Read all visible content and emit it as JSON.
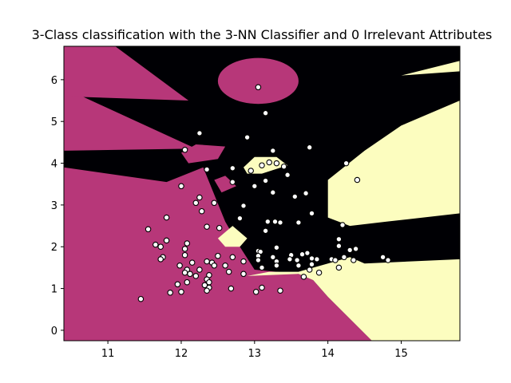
{
  "chart_data": {
    "type": "scatter",
    "title": "3-Class classification with the 3-NN Classifier and 0 Irrelevant Attributes",
    "xlabel": "",
    "ylabel": "",
    "xlim": [
      10.4,
      15.8
    ],
    "ylim": [
      -0.25,
      6.8
    ],
    "x_ticks": [
      11,
      12,
      13,
      14,
      15
    ],
    "y_ticks": [
      0,
      1,
      2,
      3,
      4,
      5,
      6
    ],
    "grid": false,
    "legend": "none",
    "colors": {
      "class_0": "#b73779",
      "class_1": "#000004",
      "class_2": "#fcfdbf",
      "point_edge": "#000000"
    },
    "decision_regions": [
      {
        "class": "class_0",
        "polygon": [
          [
            10.4,
            5.8
          ],
          [
            12.2,
            4.35
          ],
          [
            10.4,
            4.3
          ]
        ]
      },
      {
        "class": "class_0",
        "polygon": [
          [
            10.4,
            3.9
          ],
          [
            11.8,
            3.55
          ],
          [
            12.3,
            3.9
          ],
          [
            12.6,
            2.6
          ],
          [
            12.8,
            2.0
          ],
          [
            13.0,
            1.45
          ],
          [
            13.6,
            1.35
          ],
          [
            13.8,
            1.2
          ],
          [
            14.0,
            0.8
          ],
          [
            14.6,
            -0.25
          ],
          [
            10.4,
            -0.25
          ]
        ]
      },
      {
        "class": "class_0",
        "polygon": [
          [
            10.4,
            6.8
          ],
          [
            11.1,
            6.8
          ],
          [
            12.1,
            5.5
          ],
          [
            10.4,
            5.6
          ]
        ]
      },
      {
        "class": "class_0",
        "polygon": [
          [
            12.0,
            4.25
          ],
          [
            12.2,
            4.45
          ],
          [
            12.6,
            4.4
          ],
          [
            12.5,
            4.1
          ],
          [
            12.1,
            4.0
          ]
        ]
      },
      {
        "class": "class_0",
        "polygon": [
          [
            12.45,
            3.6
          ],
          [
            12.6,
            3.7
          ],
          [
            12.75,
            3.45
          ],
          [
            12.55,
            3.3
          ]
        ]
      },
      {
        "class": "class_2",
        "polygon": [
          [
            12.9,
            1.3
          ],
          [
            13.2,
            1.4
          ],
          [
            13.6,
            1.4
          ],
          [
            14.0,
            1.6
          ],
          [
            14.3,
            1.75
          ],
          [
            14.5,
            1.6
          ],
          [
            15.8,
            1.7
          ],
          [
            15.8,
            -0.25
          ],
          [
            14.6,
            -0.25
          ],
          [
            14.0,
            0.8
          ],
          [
            13.8,
            1.2
          ],
          [
            13.6,
            1.35
          ]
        ]
      },
      {
        "class": "class_2",
        "polygon": [
          [
            14.0,
            3.6
          ],
          [
            14.5,
            4.3
          ],
          [
            15.0,
            4.9
          ],
          [
            15.8,
            5.5
          ],
          [
            15.8,
            2.8
          ],
          [
            14.8,
            2.6
          ],
          [
            14.3,
            2.5
          ],
          [
            14.0,
            2.7
          ]
        ]
      },
      {
        "class": "class_2",
        "polygon": [
          [
            12.5,
            2.2
          ],
          [
            12.7,
            2.5
          ],
          [
            12.9,
            2.2
          ],
          [
            12.8,
            2.0
          ],
          [
            12.6,
            2.0
          ]
        ]
      },
      {
        "class": "class_2",
        "polygon": [
          [
            12.85,
            3.9
          ],
          [
            13.0,
            4.15
          ],
          [
            13.3,
            4.15
          ],
          [
            13.45,
            3.95
          ],
          [
            13.1,
            3.75
          ],
          [
            12.9,
            3.75
          ]
        ]
      },
      {
        "class": "class_2",
        "polygon": [
          [
            15.0,
            6.1
          ],
          [
            15.8,
            6.45
          ],
          [
            15.8,
            6.2
          ]
        ]
      }
    ],
    "decision_ellipses": [
      {
        "class": "class_0",
        "cx": 13.05,
        "cy": 5.97,
        "rx": 0.55,
        "ry": 0.55
      }
    ],
    "points": [
      {
        "x": 13.05,
        "y": 5.82
      },
      {
        "x": 13.15,
        "y": 5.2
      },
      {
        "x": 12.25,
        "y": 4.72
      },
      {
        "x": 12.9,
        "y": 4.62
      },
      {
        "x": 12.05,
        "y": 4.32
      },
      {
        "x": 13.75,
        "y": 4.38
      },
      {
        "x": 13.25,
        "y": 4.3
      },
      {
        "x": 14.25,
        "y": 4.0
      },
      {
        "x": 12.35,
        "y": 3.85
      },
      {
        "x": 12.7,
        "y": 3.88
      },
      {
        "x": 12.95,
        "y": 3.82
      },
      {
        "x": 13.1,
        "y": 3.95
      },
      {
        "x": 13.2,
        "y": 4.02
      },
      {
        "x": 13.3,
        "y": 4.0
      },
      {
        "x": 13.4,
        "y": 3.92
      },
      {
        "x": 13.45,
        "y": 3.72
      },
      {
        "x": 14.4,
        "y": 3.6
      },
      {
        "x": 12.7,
        "y": 3.55
      },
      {
        "x": 13.15,
        "y": 3.58
      },
      {
        "x": 13.0,
        "y": 3.45
      },
      {
        "x": 12.0,
        "y": 3.45
      },
      {
        "x": 13.25,
        "y": 3.3
      },
      {
        "x": 13.7,
        "y": 3.28
      },
      {
        "x": 13.55,
        "y": 3.2
      },
      {
        "x": 12.25,
        "y": 3.18
      },
      {
        "x": 12.2,
        "y": 3.05
      },
      {
        "x": 12.45,
        "y": 3.05
      },
      {
        "x": 12.85,
        "y": 2.98
      },
      {
        "x": 12.28,
        "y": 2.85
      },
      {
        "x": 13.78,
        "y": 2.8
      },
      {
        "x": 11.8,
        "y": 2.7
      },
      {
        "x": 12.8,
        "y": 2.68
      },
      {
        "x": 13.18,
        "y": 2.6
      },
      {
        "x": 13.28,
        "y": 2.6
      },
      {
        "x": 13.35,
        "y": 2.58
      },
      {
        "x": 13.6,
        "y": 2.58
      },
      {
        "x": 14.2,
        "y": 2.52
      },
      {
        "x": 12.35,
        "y": 2.48
      },
      {
        "x": 12.52,
        "y": 2.45
      },
      {
        "x": 11.55,
        "y": 2.42
      },
      {
        "x": 13.15,
        "y": 2.38
      },
      {
        "x": 11.8,
        "y": 2.15
      },
      {
        "x": 12.08,
        "y": 2.08
      },
      {
        "x": 14.15,
        "y": 2.18
      },
      {
        "x": 11.65,
        "y": 2.05
      },
      {
        "x": 11.72,
        "y": 2.0
      },
      {
        "x": 14.15,
        "y": 2.02
      },
      {
        "x": 12.05,
        "y": 1.95
      },
      {
        "x": 13.3,
        "y": 1.98
      },
      {
        "x": 14.3,
        "y": 1.92
      },
      {
        "x": 14.38,
        "y": 1.95
      },
      {
        "x": 13.05,
        "y": 1.9
      },
      {
        "x": 13.08,
        "y": 1.88
      },
      {
        "x": 11.75,
        "y": 1.75
      },
      {
        "x": 12.05,
        "y": 1.8
      },
      {
        "x": 12.5,
        "y": 1.78
      },
      {
        "x": 12.7,
        "y": 1.75
      },
      {
        "x": 13.05,
        "y": 1.78
      },
      {
        "x": 13.25,
        "y": 1.75
      },
      {
        "x": 13.5,
        "y": 1.8
      },
      {
        "x": 13.65,
        "y": 1.82
      },
      {
        "x": 13.72,
        "y": 1.85
      },
      {
        "x": 14.22,
        "y": 1.75
      },
      {
        "x": 14.75,
        "y": 1.75
      },
      {
        "x": 11.72,
        "y": 1.7
      },
      {
        "x": 12.15,
        "y": 1.62
      },
      {
        "x": 12.35,
        "y": 1.65
      },
      {
        "x": 12.42,
        "y": 1.62
      },
      {
        "x": 12.85,
        "y": 1.65
      },
      {
        "x": 13.05,
        "y": 1.68
      },
      {
        "x": 13.3,
        "y": 1.65
      },
      {
        "x": 13.48,
        "y": 1.7
      },
      {
        "x": 13.58,
        "y": 1.68
      },
      {
        "x": 13.78,
        "y": 1.72
      },
      {
        "x": 13.85,
        "y": 1.7
      },
      {
        "x": 14.05,
        "y": 1.7
      },
      {
        "x": 14.1,
        "y": 1.68
      },
      {
        "x": 14.35,
        "y": 1.68
      },
      {
        "x": 14.82,
        "y": 1.68
      },
      {
        "x": 11.98,
        "y": 1.55
      },
      {
        "x": 12.45,
        "y": 1.55
      },
      {
        "x": 12.6,
        "y": 1.55
      },
      {
        "x": 13.3,
        "y": 1.55
      },
      {
        "x": 13.6,
        "y": 1.55
      },
      {
        "x": 13.78,
        "y": 1.58
      },
      {
        "x": 14.15,
        "y": 1.5
      },
      {
        "x": 12.08,
        "y": 1.45
      },
      {
        "x": 12.25,
        "y": 1.45
      },
      {
        "x": 12.65,
        "y": 1.4
      },
      {
        "x": 12.85,
        "y": 1.35
      },
      {
        "x": 13.1,
        "y": 1.5
      },
      {
        "x": 13.75,
        "y": 1.45
      },
      {
        "x": 13.88,
        "y": 1.38
      },
      {
        "x": 12.2,
        "y": 1.3
      },
      {
        "x": 12.38,
        "y": 1.32
      },
      {
        "x": 12.05,
        "y": 1.38
      },
      {
        "x": 12.12,
        "y": 1.35
      },
      {
        "x": 13.67,
        "y": 1.28
      },
      {
        "x": 12.35,
        "y": 1.22
      },
      {
        "x": 12.38,
        "y": 1.15
      },
      {
        "x": 12.08,
        "y": 1.15
      },
      {
        "x": 11.95,
        "y": 1.1
      },
      {
        "x": 12.32,
        "y": 1.08
      },
      {
        "x": 12.38,
        "y": 1.02
      },
      {
        "x": 13.1,
        "y": 1.02
      },
      {
        "x": 12.68,
        "y": 1.0
      },
      {
        "x": 12.35,
        "y": 0.95
      },
      {
        "x": 11.85,
        "y": 0.9
      },
      {
        "x": 12.0,
        "y": 0.92
      },
      {
        "x": 13.02,
        "y": 0.92
      },
      {
        "x": 13.35,
        "y": 0.95
      },
      {
        "x": 11.45,
        "y": 0.75
      }
    ]
  }
}
